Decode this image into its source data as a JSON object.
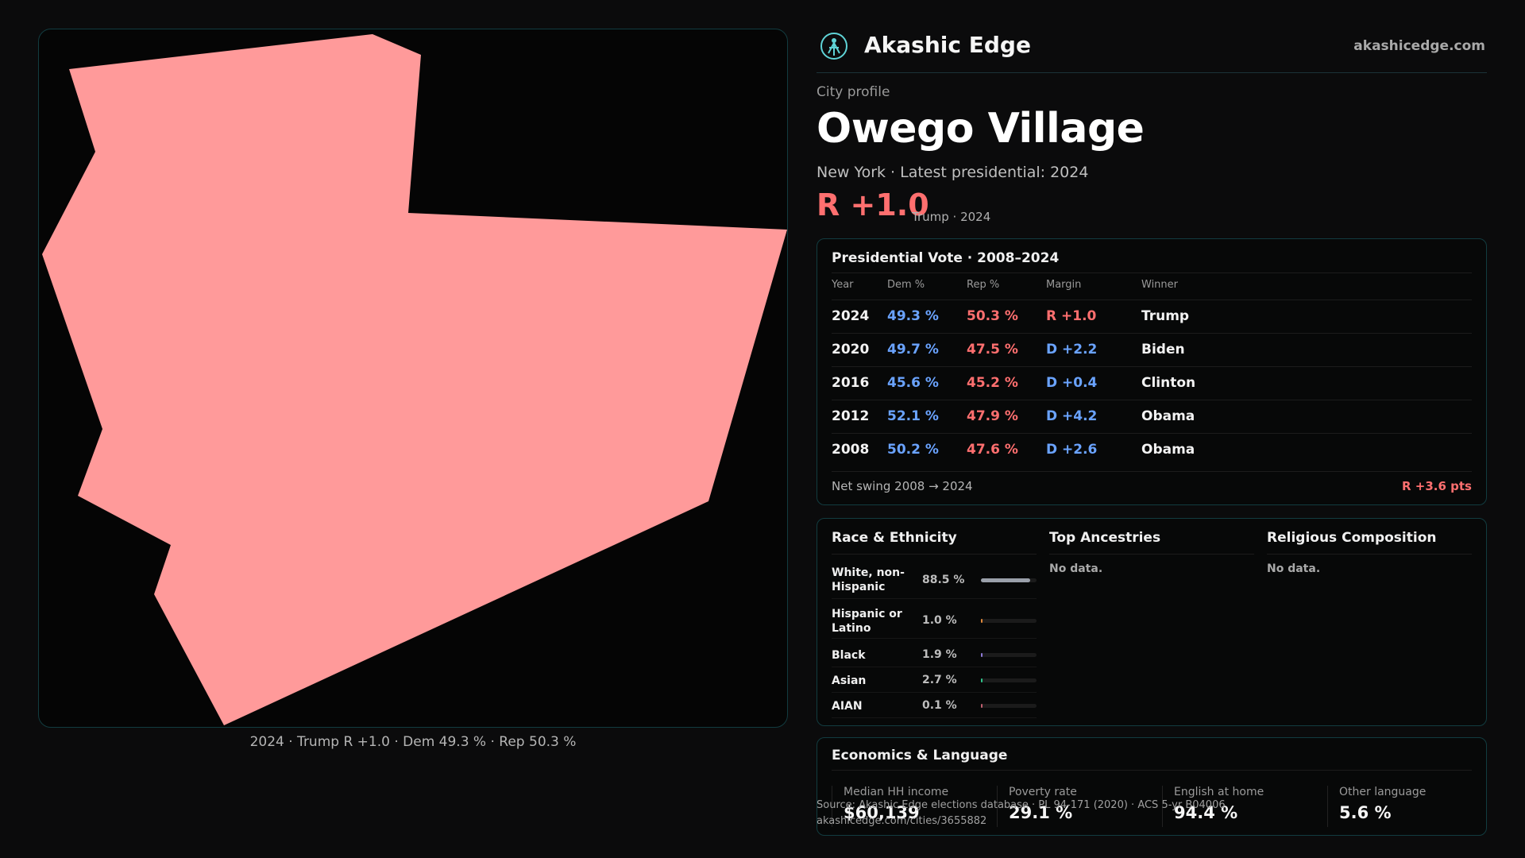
{
  "brand": {
    "name": "Akashic Edge",
    "site": "akashicedge.com"
  },
  "profile": {
    "kicker": "City profile",
    "city": "Owego Village",
    "subtitle": "New York · Latest presidential: 2024",
    "margin": "R +1.0",
    "margin_note": "Trump · 2024"
  },
  "map": {
    "caption": "2024 · Trump R +1.0 · Dem 49.3 % · Rep 50.3 %",
    "fill_color": "#ff9a9a"
  },
  "presidential": {
    "title": "Presidential Vote · 2008–2024",
    "headers": [
      "Year",
      "Dem %",
      "Rep %",
      "Margin",
      "Winner"
    ],
    "rows": [
      {
        "year": "2024",
        "dem": "49.3 %",
        "rep": "50.3 %",
        "margin": "R +1.0",
        "party": "R",
        "winner": "Trump"
      },
      {
        "year": "2020",
        "dem": "49.7 %",
        "rep": "47.5 %",
        "margin": "D +2.2",
        "party": "D",
        "winner": "Biden"
      },
      {
        "year": "2016",
        "dem": "45.6 %",
        "rep": "45.2 %",
        "margin": "D +0.4",
        "party": "D",
        "winner": "Clinton"
      },
      {
        "year": "2012",
        "dem": "52.1 %",
        "rep": "47.9 %",
        "margin": "D +4.2",
        "party": "D",
        "winner": "Obama"
      },
      {
        "year": "2008",
        "dem": "50.2 %",
        "rep": "47.6 %",
        "margin": "D +2.6",
        "party": "D",
        "winner": "Obama"
      }
    ],
    "swing_label": "Net swing 2008 → 2024",
    "swing_value": "R +3.6 pts"
  },
  "race": {
    "title": "Race & Ethnicity",
    "rows": [
      {
        "name": "White, non-Hispanic",
        "pct": "88.5 %",
        "value": 88.5,
        "color": "#9aa0aa"
      },
      {
        "name": "Hispanic or Latino",
        "pct": "1.0 %",
        "value": 1.0,
        "color": "#e0883a"
      },
      {
        "name": "Black",
        "pct": "1.9 %",
        "value": 1.9,
        "color": "#8f7bd8"
      },
      {
        "name": "Asian",
        "pct": "2.7 %",
        "value": 2.7,
        "color": "#2fc48a"
      },
      {
        "name": "AIAN",
        "pct": "0.1 %",
        "value": 0.1,
        "color": "#c06070"
      }
    ]
  },
  "ancestries": {
    "title": "Top Ancestries",
    "empty": "No data."
  },
  "religion": {
    "title": "Religious Composition",
    "empty": "No data."
  },
  "economics": {
    "title": "Economics & Language",
    "stats": [
      {
        "label": "Median HH income",
        "value": "$60,139"
      },
      {
        "label": "Poverty rate",
        "value": "29.1 %"
      },
      {
        "label": "English at home",
        "value": "94.4 %"
      },
      {
        "label": "Other language",
        "value": "5.6 %"
      }
    ]
  },
  "footer": {
    "source": "Source: Akashic Edge elections database · PL 94-171 (2020) · ACS 5-yr B04006",
    "link": "akashicedge.com/cities/3655882"
  }
}
